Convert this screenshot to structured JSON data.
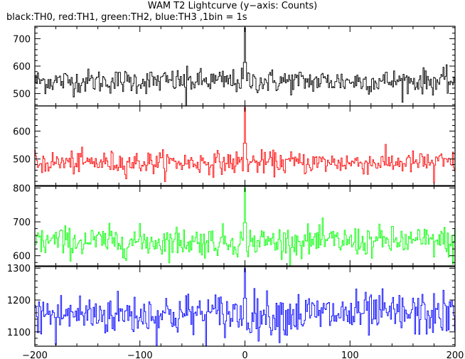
{
  "chart_data": {
    "type": "line",
    "title": "WAM T2 Lightcurve (y−axis: Counts)",
    "subtitle": "black:TH0, red:TH1, green:TH2, blue:TH3 ,1bin = 1s",
    "xlabel": "",
    "xlim": [
      -200,
      200
    ],
    "xticks": [
      -200,
      -100,
      0,
      100,
      200
    ],
    "x_step": 1,
    "panels": [
      {
        "name": "TH0",
        "color": "#000000",
        "ylim": [
          455,
          745
        ],
        "yticks": [
          500,
          600,
          700
        ],
        "baseline": 545,
        "noise_sd": 22,
        "peak": {
          "x": 0,
          "value": 740
        },
        "dip": {
          "x": -56,
          "value": 455
        }
      },
      {
        "name": "TH1",
        "color": "#ff0000",
        "ylim": [
          405,
          690
        ],
        "yticks": [
          500,
          600
        ],
        "baseline": 487,
        "noise_sd": 20,
        "peak": {
          "x": 0,
          "value": 685
        },
        "dip": {
          "x": 180,
          "value": 415
        }
      },
      {
        "name": "TH2",
        "color": "#00ff00",
        "ylim": [
          570,
          805
        ],
        "yticks": [
          600,
          700,
          800
        ],
        "baseline": 642,
        "noise_sd": 22,
        "peak": {
          "x": 0,
          "value": 800
        },
        "dip": {
          "x": 198,
          "value": 575
        }
      },
      {
        "name": "TH3",
        "color": "#0000ff",
        "ylim": [
          1055,
          1305
        ],
        "yticks": [
          1100,
          1200,
          1300
        ],
        "baseline": 1155,
        "noise_sd": 34,
        "peak": {
          "x": 0,
          "value": 1300
        },
        "dip": {
          "x": -180,
          "value": 1060
        }
      }
    ]
  }
}
